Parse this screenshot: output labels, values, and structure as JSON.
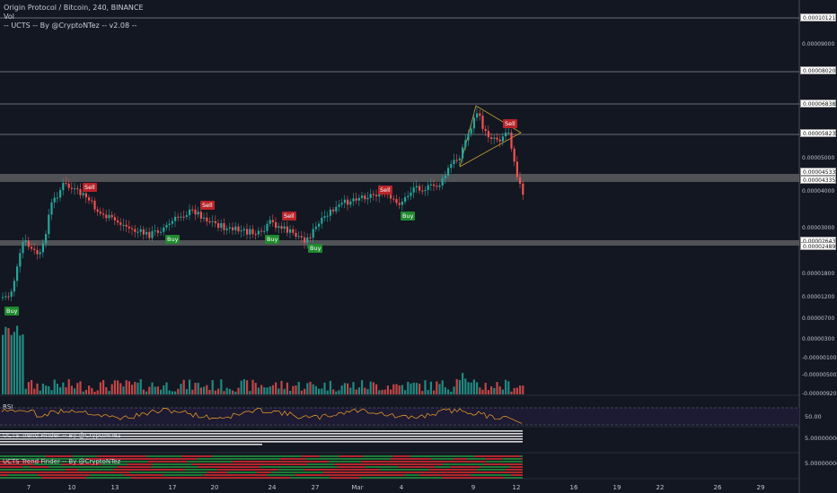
{
  "legend": {
    "title": "Origin Protocol / Bitcoin, 240, BINANCE",
    "vol": "Vol",
    "indicator": "-- UCTS -- By @CryptoNTez -- v2.08 --"
  },
  "signals": {
    "buy": "Buy",
    "sell": "Sell"
  },
  "price_axis": {
    "labels": [
      "0.00010121",
      "0.00009000",
      "0.00008020",
      "0.00006838",
      "0.00005823",
      "0.00005000",
      "0.00004533",
      "0.00004335",
      "0.00004000",
      "0.00003000",
      "0.00002643",
      "0.00002489",
      "0.00001800",
      "0.00001200",
      "0.00000700",
      "0.00000300",
      "-0.00000100",
      "-0.00000500",
      "-0.00000920"
    ]
  },
  "panes": {
    "rsi_label": "RSI",
    "rsi_value": "50.00",
    "trend1_label": "UCTS Trend Finder -- By @CryptoNTez",
    "trend1_value": "5.00000000",
    "trend2_label": "UCTS Trend Finder -- By @CryptoNTez",
    "trend2_value": "5.00000000"
  },
  "time_axis": {
    "labels": [
      "7",
      "10",
      "13",
      "17",
      "20",
      "24",
      "27",
      "Mar",
      "4",
      "9",
      "12",
      "16",
      "19",
      "22",
      "26",
      "29"
    ]
  },
  "colors": {
    "background": "#131722",
    "up": "#26a69a",
    "down": "#ef5350",
    "buy": "#1e8a2e",
    "sell": "#b8242a",
    "zone": "#7a7a7a",
    "rsi": "#f5a623"
  }
}
